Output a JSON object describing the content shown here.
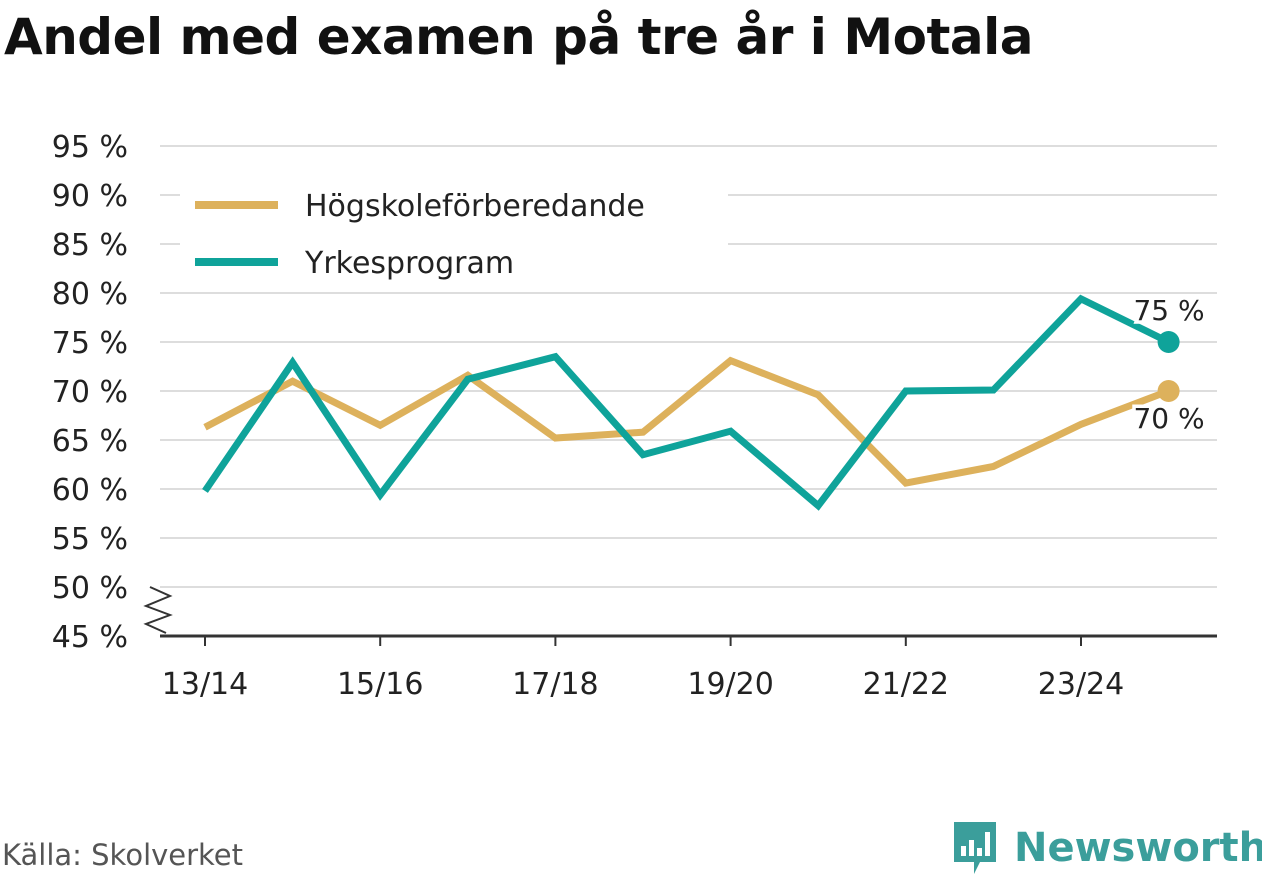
{
  "title": "Andel med examen på tre år i Motala",
  "source": "Källa: Skolverket",
  "brand": "Newsworthy",
  "colors": {
    "hogskole": "#ddb15c",
    "yrkes": "#0fa39a",
    "grid": "#dddddd",
    "axis": "#333333",
    "text": "#222222"
  },
  "chart_data": {
    "type": "line",
    "title": "Andel med examen på tre år i Motala",
    "x": [
      "13/14",
      "14/15",
      "15/16",
      "16/17",
      "17/18",
      "18/19",
      "19/20",
      "20/21",
      "21/22",
      "22/23",
      "23/24",
      "24/25"
    ],
    "xticks": [
      "13/14",
      "15/16",
      "17/18",
      "19/20",
      "21/22",
      "23/24"
    ],
    "yticks": [
      "95 %",
      "90 %",
      "85 %",
      "80 %",
      "75 %",
      "70 %",
      "65 %",
      "60 %",
      "55 %",
      "50 %",
      "45 %"
    ],
    "ylim": [
      45,
      95
    ],
    "series": [
      {
        "name": "Högskoleförberedande",
        "values": [
          66.3,
          71.0,
          66.5,
          71.6,
          65.2,
          65.8,
          73.1,
          69.6,
          60.6,
          62.3,
          66.6,
          70.0
        ],
        "end_label": "70 %"
      },
      {
        "name": "Yrkesprogram",
        "values": [
          59.8,
          72.9,
          59.4,
          71.2,
          73.5,
          63.5,
          65.9,
          58.3,
          70.0,
          70.1,
          79.4,
          75.0
        ],
        "end_label": "75 %"
      }
    ],
    "legend": "top-left"
  }
}
